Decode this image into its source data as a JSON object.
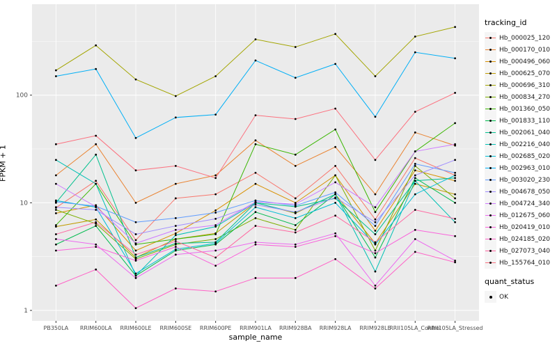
{
  "figure": {
    "ylabel": "FPKM + 1",
    "xlabel": "sample_name",
    "tracking_legend_title": "tracking_id",
    "quant_legend_title": "quant_status",
    "quant_items": [
      {
        "label": "OK"
      }
    ],
    "panel_bg": "#EBEBEB",
    "grid_color": "#FFFFFF",
    "tick_label_color": "#4D4D4D",
    "tick_mark_color": "#333333",
    "point_color": "#000000"
  },
  "chart_data": {
    "type": "line",
    "title": "",
    "xlabel": "sample_name",
    "ylabel": "FPKM + 1",
    "y_scale": "log10",
    "ylim": [
      0.8,
      700
    ],
    "y_ticks": [
      1,
      10,
      100
    ],
    "grid": true,
    "legend_position": "right",
    "point_marker": "black dot (quant_status = OK) at every data point",
    "categories": [
      "PB350LA",
      "RRIM600LA",
      "RRIM600LE",
      "RRIM600SE",
      "RRIM600PE",
      "RRIM901LA",
      "RRIM928BA",
      "RRIM928LA",
      "RRIM928LE",
      "RRII105LA_Control",
      "RRII105LA_Stressed"
    ],
    "series": [
      {
        "name": "Hb_000025_120",
        "color": "#F8766D",
        "values": [
          9,
          16,
          4.5,
          11,
          12,
          19,
          11,
          22,
          7,
          26,
          18
        ]
      },
      {
        "name": "Hb_000170_010",
        "color": "#EA8331",
        "values": [
          18,
          35,
          10,
          15,
          18,
          38,
          22,
          33,
          12,
          45,
          34
        ]
      },
      {
        "name": "Hb_000496_060",
        "color": "#D89000",
        "values": [
          8,
          9.5,
          3.6,
          5.2,
          8.5,
          15,
          10,
          18,
          5.5,
          20,
          16
        ]
      },
      {
        "name": "Hb_000625_070",
        "color": "#C09B00",
        "values": [
          6,
          7,
          3.1,
          4.6,
          5.2,
          10,
          8,
          12,
          4.2,
          15,
          12
        ]
      },
      {
        "name": "Hb_000696_310",
        "color": "#A3A500",
        "values": [
          170,
          290,
          140,
          98,
          150,
          330,
          280,
          370,
          150,
          350,
          430
        ]
      },
      {
        "name": "Hb_000834_270",
        "color": "#7CAE00",
        "values": [
          8.6,
          6.4,
          3.0,
          4.1,
          4.6,
          7.2,
          5.6,
          18,
          3.6,
          22,
          11
        ]
      },
      {
        "name": "Hb_001360_050",
        "color": "#39B600",
        "values": [
          6.2,
          15,
          4.1,
          4.6,
          5.1,
          35,
          28,
          48,
          8.2,
          30,
          55
        ]
      },
      {
        "name": "Hb_001833_110",
        "color": "#00BB4E",
        "values": [
          4.1,
          6.1,
          2.1,
          3.6,
          4.1,
          8.2,
          6.2,
          12,
          3.1,
          17,
          10
        ]
      },
      {
        "name": "Hb_002061_040",
        "color": "#00C08E",
        "values": [
          10,
          28,
          3.1,
          4.2,
          4.3,
          10,
          9.2,
          11,
          5.1,
          16,
          17
        ]
      },
      {
        "name": "Hb_002216_040",
        "color": "#00C0B4",
        "values": [
          25,
          15,
          2.1,
          5.0,
          6.0,
          10,
          8.1,
          12,
          2.3,
          16,
          6.6
        ]
      },
      {
        "name": "Hb_002685_020",
        "color": "#00BDD4",
        "values": [
          10.5,
          9.1,
          2.2,
          3.7,
          4.2,
          9.1,
          7.2,
          10,
          4.1,
          12,
          18
        ]
      },
      {
        "name": "Hb_002963_010",
        "color": "#00AFF6",
        "values": [
          150,
          175,
          40,
          62,
          66,
          210,
          145,
          195,
          63,
          250,
          220
        ]
      },
      {
        "name": "Hb_003020_230",
        "color": "#5E9BFF",
        "values": [
          10.2,
          9.3,
          6.6,
          7.2,
          8.1,
          10.5,
          9.4,
          12.5,
          6.1,
          23,
          19
        ]
      },
      {
        "name": "Hb_004678_050",
        "color": "#9F8CFF",
        "values": [
          9.1,
          8.6,
          5.1,
          6.1,
          7.1,
          9.6,
          8.2,
          11.2,
          6.6,
          18,
          25
        ]
      },
      {
        "name": "Hb_004724_340",
        "color": "#CD79FF",
        "values": [
          15,
          9.2,
          4.2,
          5.6,
          6.2,
          10.2,
          9.7,
          15.5,
          9.1,
          30,
          35
        ]
      },
      {
        "name": "Hb_012675_060",
        "color": "#EC69EF",
        "values": [
          4.6,
          4.1,
          2.0,
          3.3,
          3.6,
          4.3,
          4.1,
          5.2,
          1.7,
          4.6,
          2.9
        ]
      },
      {
        "name": "Hb_020419_010",
        "color": "#FA62DB",
        "values": [
          3.6,
          3.9,
          2.9,
          3.9,
          2.6,
          4.1,
          3.9,
          4.9,
          3.4,
          5.6,
          4.9
        ]
      },
      {
        "name": "Hb_024185_020",
        "color": "#FF61C7",
        "values": [
          1.7,
          2.4,
          1.05,
          1.6,
          1.5,
          2.0,
          2.0,
          3.0,
          1.6,
          3.5,
          2.8
        ]
      },
      {
        "name": "Hb_027073_040",
        "color": "#FF68A1",
        "values": [
          5.1,
          6.6,
          3.3,
          4.4,
          3.1,
          6.1,
          5.3,
          7.6,
          4.3,
          8.6,
          7.1
        ]
      },
      {
        "name": "Hb_155764_010",
        "color": "#FC717F",
        "values": [
          35,
          42,
          20,
          22,
          17,
          65,
          60,
          75,
          25,
          70,
          105
        ]
      }
    ]
  }
}
